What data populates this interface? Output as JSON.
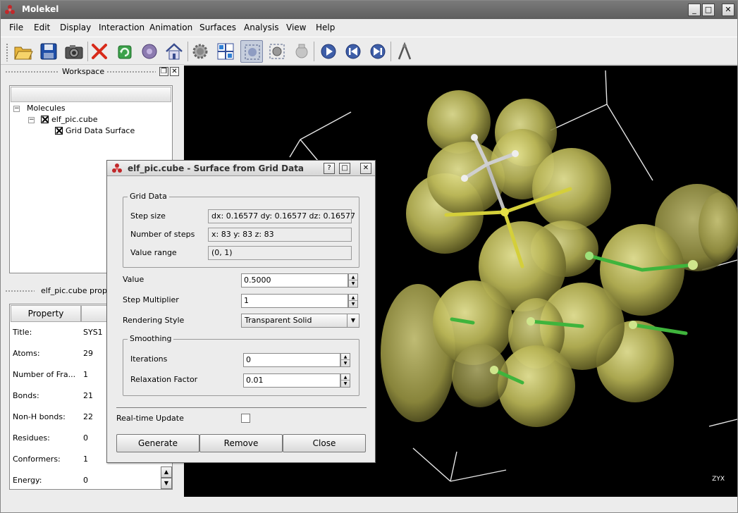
{
  "window": {
    "title": "Molekel",
    "controls": [
      "_",
      "□",
      "✕"
    ]
  },
  "menu": [
    "File",
    "Edit",
    "Display",
    "Interaction",
    "Animation",
    "Surfaces",
    "Analysis",
    "View",
    "Help"
  ],
  "toolbar": {
    "icons": [
      "open-folder-icon",
      "save-icon",
      "camera-icon",
      "delete-icon",
      "refresh-icon",
      "atom-icon",
      "home-icon",
      "gear-icon",
      "grid-icon",
      "select-icon",
      "target-icon",
      "gear-disabled-icon",
      "play-icon",
      "skip-back-icon",
      "skip-forward-icon",
      "measure-icon"
    ]
  },
  "workspace": {
    "title": "Workspace",
    "tree": {
      "root": "Molecules",
      "molecule": "elf_pic.cube",
      "child": "Grid Data Surface"
    }
  },
  "properties": {
    "title": "elf_pic.cube proper",
    "column": "Property",
    "rows": [
      {
        "label": "Title:",
        "value": "SYS1"
      },
      {
        "label": "Atoms:",
        "value": "29"
      },
      {
        "label": "Number of Fra...",
        "value": "1"
      },
      {
        "label": "Bonds:",
        "value": "21"
      },
      {
        "label": "Non-H bonds:",
        "value": "22"
      },
      {
        "label": "Residues:",
        "value": "0"
      },
      {
        "label": "Conformers:",
        "value": "1"
      },
      {
        "label": "Energy:",
        "value": "0"
      }
    ]
  },
  "dialog": {
    "title": "elf_pic.cube - Surface from Grid Data",
    "grid_group": "Grid Data",
    "step_size_label": "Step size",
    "step_size": "dx: 0.16577  dy: 0.16577  dz: 0.16577",
    "num_steps_label": "Number of steps",
    "num_steps": "x: 83  y: 83  z: 83",
    "value_range_label": "Value range",
    "value_range": "(0, 1)",
    "value_label": "Value",
    "value": "0.5000",
    "step_mult_label": "Step Multiplier",
    "step_mult": "1",
    "render_style_label": "Rendering Style",
    "render_style": "Transparent Solid",
    "smoothing_group": "Smoothing",
    "iterations_label": "Iterations",
    "iterations": "0",
    "relax_label": "Relaxation Factor",
    "relax": "0.01",
    "realtime_label": "Real-time Update",
    "realtime_checked": false,
    "buttons": {
      "generate": "Generate",
      "remove": "Remove",
      "close": "Close"
    }
  },
  "viewport": {
    "background": "#000000",
    "surface_color": "#c8c45a",
    "axis_label": "ZYX"
  }
}
